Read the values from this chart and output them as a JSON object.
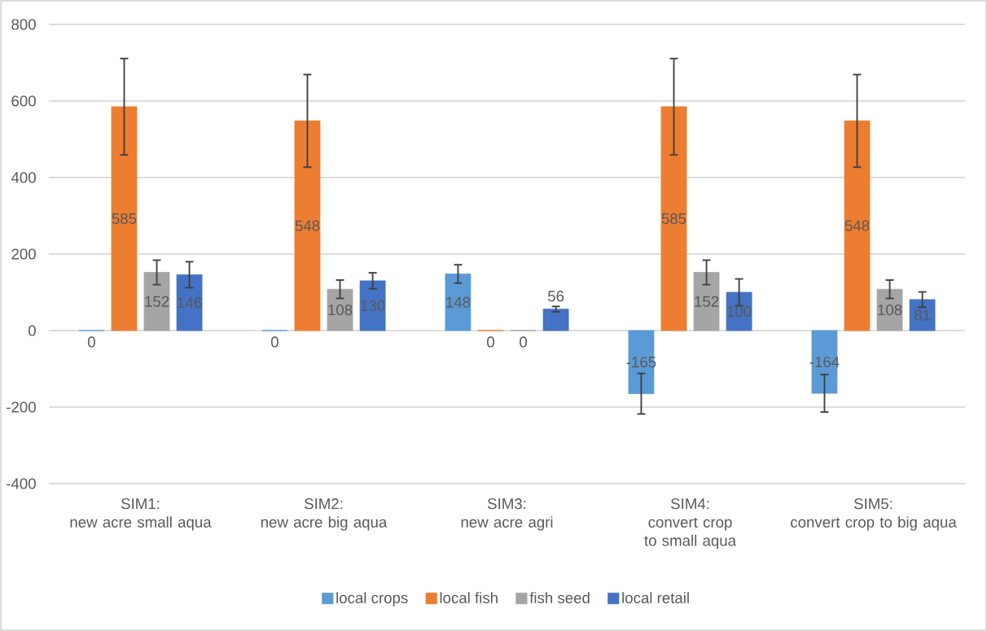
{
  "chart_data": {
    "type": "bar",
    "categories": [
      "SIM1:\nnew acre small aqua",
      "SIM2:\nnew acre big aqua",
      "SIM3:\nnew acre agri",
      "SIM4:\nconvert crop to small aqua",
      "SIM5:\nconvert crop to big aqua"
    ],
    "series": [
      {
        "name": "local crops",
        "color": "#5b9bd5",
        "values": [
          0,
          0,
          148,
          -165,
          -164
        ],
        "errors": [
          null,
          null,
          24,
          53,
          49
        ]
      },
      {
        "name": "local fish",
        "color": "#ed7d31",
        "values": [
          585,
          548,
          0,
          585,
          548
        ],
        "errors": [
          126,
          121,
          null,
          126,
          121
        ]
      },
      {
        "name": "fish seed",
        "color": "#a5a5a5",
        "values": [
          152,
          108,
          0,
          152,
          108
        ],
        "errors": [
          32,
          24,
          null,
          32,
          24
        ]
      },
      {
        "name": "local retail",
        "color": "#4472c4",
        "values": [
          146,
          130,
          56,
          100,
          81
        ],
        "errors": [
          34,
          21,
          7,
          35,
          20
        ]
      }
    ],
    "ylim": [
      -400,
      800
    ],
    "yticks": [
      -400,
      -200,
      0,
      200,
      400,
      600,
      800
    ],
    "grid": "y",
    "legend": "bottom",
    "data_labels": true
  }
}
